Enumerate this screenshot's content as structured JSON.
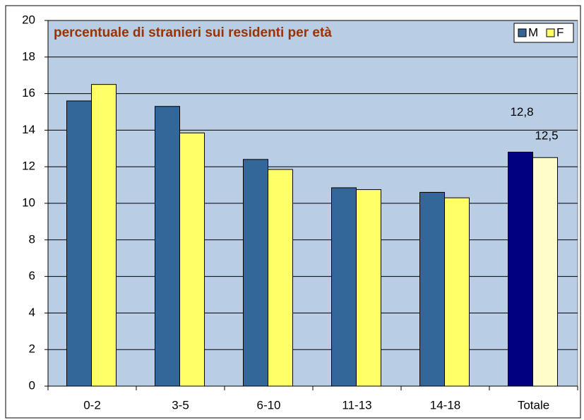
{
  "chart_data": {
    "type": "bar",
    "title": "percentuale di stranieri sui residenti per età",
    "categories": [
      "0-2",
      "3-5",
      "6-10",
      "11-13",
      "14-18",
      "Totale"
    ],
    "series": [
      {
        "name": "M",
        "color": "#336699",
        "colors": [
          "#336699",
          "#336699",
          "#336699",
          "#336699",
          "#336699",
          "#000080"
        ],
        "values": [
          15.6,
          15.3,
          12.4,
          10.85,
          10.6,
          12.8
        ],
        "value_labels": [
          null,
          null,
          null,
          null,
          null,
          "12,8"
        ]
      },
      {
        "name": "F",
        "color": "#ffff66",
        "colors": [
          "#ffff66",
          "#ffff66",
          "#ffff66",
          "#ffff66",
          "#ffff66",
          "#ffffcc"
        ],
        "values": [
          16.5,
          13.85,
          11.85,
          10.75,
          10.3,
          12.5
        ],
        "value_labels": [
          null,
          null,
          null,
          null,
          null,
          "12,5"
        ]
      }
    ],
    "ylim": [
      0,
      20
    ],
    "yticks": [
      0,
      2,
      4,
      6,
      8,
      10,
      12,
      14,
      16,
      18,
      20
    ],
    "grid": true,
    "legend": "top-right",
    "background": "#b9cde5"
  }
}
